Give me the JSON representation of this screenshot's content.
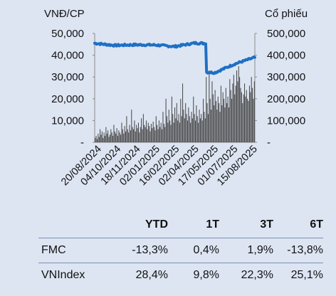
{
  "chart_data": {
    "type": "bar+line",
    "left_axis_label": "VNĐ/CP",
    "right_axis_label": "Cổ phiếu",
    "left_ticks": [
      "50,000",
      "40,000",
      "30,000",
      "20,000",
      "10,000",
      "-"
    ],
    "right_ticks": [
      "500,000",
      "400,000",
      "300,000",
      "200,000",
      "100,000",
      "-"
    ],
    "left_range": [
      0,
      50000
    ],
    "right_range": [
      0,
      500000
    ],
    "x_ticks": [
      "20/08/2024",
      "04/10/2024",
      "18/11/2024",
      "02/01/2025",
      "16/02/2025",
      "02/04/2025",
      "17/05/2025",
      "01/07/2025",
      "15/08/2025"
    ],
    "price_series": {
      "color": "#1f6fc4",
      "x": [
        "20/08/2024",
        "04/10/2024",
        "18/11/2024",
        "02/01/2025",
        "16/02/2025",
        "02/04/2025",
        "17/05/2025",
        "01/07/2025",
        "15/08/2025"
      ],
      "values": [
        45500,
        44500,
        44800,
        44700,
        44000,
        45600,
        32000,
        36000,
        39000
      ]
    },
    "volume_series": {
      "color": "#4a4a4a",
      "values": [
        20000,
        30000,
        15000,
        40000,
        25000,
        60000,
        35000,
        50000,
        20000,
        45000,
        30000,
        70000,
        40000,
        55000,
        25000,
        35000,
        60000,
        45000,
        30000,
        80000,
        50000,
        40000,
        65000,
        30000,
        55000,
        45000,
        35000,
        90000,
        60000,
        40000,
        75000,
        50000,
        120000,
        60000,
        45000,
        80000,
        55000,
        150000,
        70000,
        60000,
        100000,
        50000,
        80000,
        65000,
        90000,
        45000,
        70000,
        110000,
        60000,
        130000,
        80000,
        70000,
        100000,
        60000,
        90000,
        75000,
        50000,
        85000,
        65000,
        95000,
        70000,
        55000,
        120000,
        80000,
        60000,
        100000,
        70000,
        90000,
        60000,
        140000,
        85000,
        70000,
        200000,
        120000,
        90000,
        150000,
        100000,
        80000,
        210000,
        130000,
        90000,
        160000,
        110000,
        180000,
        100000,
        130000,
        90000,
        200000,
        120000,
        270000,
        150000,
        110000,
        180000,
        130000,
        100000,
        160000,
        120000,
        90000,
        140000,
        110000,
        210000,
        130000,
        100000,
        170000,
        120000,
        90000,
        150000,
        110000,
        130000,
        100000,
        200000,
        140000,
        110000,
        300000,
        180000,
        130000,
        330000,
        200000,
        150000,
        280000,
        220000,
        170000,
        240000,
        190000,
        150000,
        210000,
        180000,
        140000,
        260000,
        170000,
        230000,
        200000,
        160000,
        250000,
        180000,
        210000,
        160000,
        290000,
        240000,
        200000,
        270000,
        310000,
        220000,
        260000,
        330000,
        280000,
        350000,
        300000,
        250000,
        230000,
        180000,
        220000,
        270000,
        210000,
        240000,
        200000,
        190000,
        260000,
        230000,
        300000,
        250000,
        200000,
        280000
      ]
    }
  },
  "table": {
    "headers": [
      "",
      "YTD",
      "1T",
      "3T",
      "6T"
    ],
    "rows": [
      {
        "label": "FMC",
        "values": [
          "-13,3%",
          "0,4%",
          "1,9%",
          "-13,8%"
        ]
      },
      {
        "label": "VNIndex",
        "values": [
          "28,4%",
          "9,8%",
          "22,3%",
          "25,1%"
        ]
      }
    ]
  }
}
